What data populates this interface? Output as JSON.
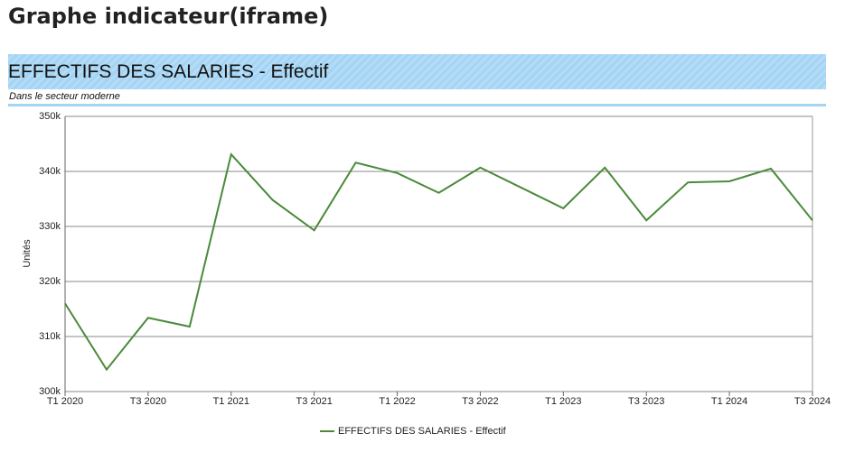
{
  "page_title": "Graphe indicateur(iframe)",
  "chart_data": {
    "type": "line",
    "title": "EFFECTIFS DES SALARIES - Effectif",
    "subtitle": "Dans le secteur moderne",
    "y_label": "Unités",
    "categories": [
      "T1 2020",
      null,
      "T3 2020",
      null,
      "T1 2021",
      null,
      "T3 2021",
      null,
      "T1 2022",
      null,
      "T3 2022",
      null,
      "T1 2023",
      null,
      "T3 2023",
      null,
      "T1 2024",
      null,
      "T3 2024"
    ],
    "series": [
      {
        "name": "EFFECTIFS DES SALARIES - Effectif",
        "color": "#4a8a3a",
        "values": [
          316000,
          304000,
          313400,
          311800,
          343100,
          334800,
          329300,
          341600,
          339700,
          336100,
          340700,
          337000,
          333300,
          340700,
          331100,
          338000,
          338200,
          340500,
          331100
        ]
      }
    ],
    "ylim": [
      300000,
      350000
    ],
    "yticks": [
      {
        "value": 300000,
        "label": "300k"
      },
      {
        "value": 310000,
        "label": "310k"
      },
      {
        "value": 320000,
        "label": "320k"
      },
      {
        "value": 330000,
        "label": "330k"
      },
      {
        "value": 340000,
        "label": "340k"
      },
      {
        "value": 350000,
        "label": "350k"
      }
    ],
    "grid": true
  }
}
